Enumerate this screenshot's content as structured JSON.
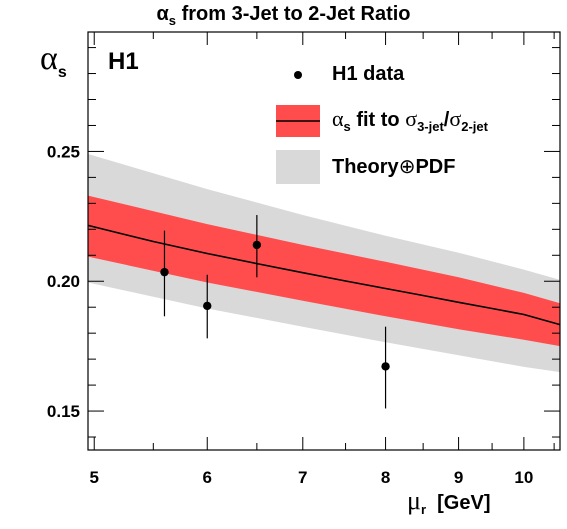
{
  "header": {
    "title_symbol": "α",
    "title_sub": "s",
    "title_rest": " from 3-Jet to 2-Jet Ratio"
  },
  "axes": {
    "y_symbol": "α",
    "y_sub": "s",
    "x_symbol": "μ",
    "x_sub": "r",
    "x_unit": "[GeV]"
  },
  "experiment_label": "H1",
  "legend": {
    "data": "H1 data",
    "fit_symbol": "α",
    "fit_sub": "s",
    "fit_mid": " fit to ",
    "fit_sigma1": "σ",
    "fit_sigma1_sub": "3-jet",
    "fit_slash": "/",
    "fit_sigma2": "σ",
    "fit_sigma2_sub": "2-jet",
    "theory_a": "Theory",
    "theory_oplus": "⊕",
    "theory_b": "PDF"
  },
  "colors": {
    "fit_band": "#ff4d4d",
    "theory_band": "#d9d9d9",
    "line": "#000000",
    "points": "#000000"
  },
  "chart_data": {
    "type": "line",
    "x_scale": "log",
    "xlim": [
      4.95,
      10.6
    ],
    "ylim": [
      0.135,
      0.296
    ],
    "xticks": [
      5,
      6,
      7,
      8,
      9,
      10
    ],
    "xtick_labels": [
      "5",
      "6",
      "7",
      "8",
      "9",
      "10"
    ],
    "yticks": [
      0.15,
      0.2,
      0.25
    ],
    "ytick_labels": [
      "0.15",
      "0.20",
      "0.25"
    ],
    "fit_line": {
      "x": [
        4.95,
        5.5,
        6,
        6.5,
        7,
        7.5,
        8,
        8.5,
        9,
        9.5,
        10,
        10.6
      ],
      "y": [
        0.2215,
        0.2153,
        0.2107,
        0.2068,
        0.2033,
        0.2001,
        0.1972,
        0.1945,
        0.1919,
        0.1895,
        0.1872,
        0.1833
      ]
    },
    "fit_band": {
      "x": [
        4.95,
        6,
        7,
        8,
        9,
        10,
        10.6
      ],
      "upper": [
        0.233,
        0.222,
        0.214,
        0.2075,
        0.2015,
        0.1955,
        0.1915
      ],
      "lower": [
        0.2095,
        0.1995,
        0.1925,
        0.1865,
        0.1815,
        0.1775,
        0.175
      ]
    },
    "theory_band": {
      "x": [
        4.95,
        6,
        7,
        8,
        9,
        10,
        10.6
      ],
      "upper": [
        0.249,
        0.2355,
        0.2255,
        0.2175,
        0.211,
        0.2045,
        0.2005
      ],
      "lower": [
        0.1995,
        0.1895,
        0.1825,
        0.1765,
        0.1715,
        0.167,
        0.165
      ]
    },
    "series": [
      {
        "name": "H1 data",
        "x": [
          5.6,
          6.0,
          6.5,
          8.0
        ],
        "y": [
          0.2035,
          0.1905,
          0.214,
          0.1672
        ],
        "y_low": [
          0.1865,
          0.178,
          0.2015,
          0.151
        ],
        "y_high": [
          0.2195,
          0.2025,
          0.2255,
          0.1825
        ]
      }
    ],
    "grid": false,
    "legend_position": "top-right"
  }
}
